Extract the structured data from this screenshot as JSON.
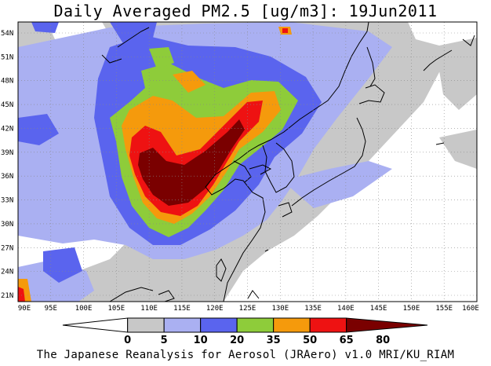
{
  "title": "Daily Averaged PM2.5 [ug/m3]: 19Jun2011",
  "footer": "The Japanese Reanalysis for Aerosol (JRAero) v1.0 MRI/KU_RIAM",
  "map": {
    "lon_labels": [
      "90E",
      "95E",
      "100E",
      "105E",
      "110E",
      "115E",
      "120E",
      "125E",
      "130E",
      "135E",
      "140E",
      "145E",
      "150E",
      "155E",
      "160E"
    ],
    "lat_labels": [
      "54N",
      "51N",
      "48N",
      "45N",
      "42N",
      "39N",
      "36N",
      "33N",
      "30N",
      "27N",
      "24N",
      "21N"
    ],
    "grid": true,
    "coastline_color": "#000000"
  },
  "colorbar": {
    "levels": [
      "0",
      "5",
      "10",
      "20",
      "35",
      "50",
      "65",
      "80"
    ],
    "colors": [
      "#ffffff",
      "#c8c8c8",
      "#aab0f2",
      "#5a64ee",
      "#8ecc3a",
      "#f59a0c",
      "#ee1212",
      "#7a0000"
    ]
  }
}
